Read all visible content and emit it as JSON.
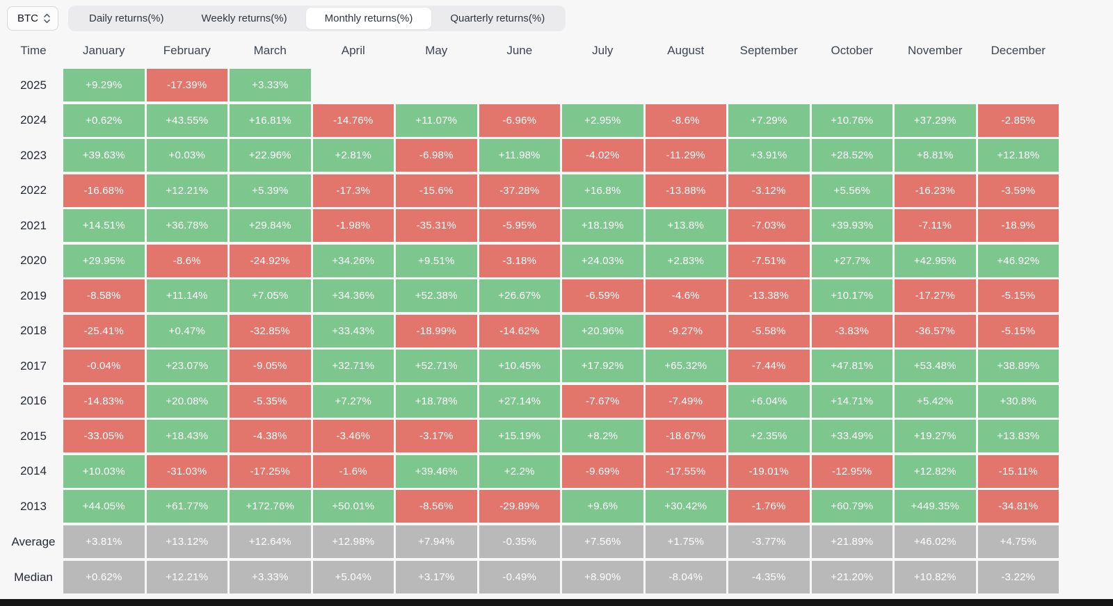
{
  "controls": {
    "symbol_select": {
      "value": "BTC"
    },
    "tabs": [
      {
        "label": "Daily returns(%)",
        "active": false
      },
      {
        "label": "Weekly returns(%)",
        "active": false
      },
      {
        "label": "Monthly returns(%)",
        "active": true
      },
      {
        "label": "Quarterly returns(%)",
        "active": false
      }
    ]
  },
  "table": {
    "time_header": "Time",
    "months": [
      "January",
      "February",
      "March",
      "April",
      "May",
      "June",
      "July",
      "August",
      "September",
      "October",
      "November",
      "December"
    ],
    "rows": [
      {
        "label": "2025",
        "type": "year",
        "cells": [
          "+9.29%",
          "-17.39%",
          "+3.33%",
          "",
          "",
          "",
          "",
          "",
          "",
          "",
          "",
          ""
        ]
      },
      {
        "label": "2024",
        "type": "year",
        "cells": [
          "+0.62%",
          "+43.55%",
          "+16.81%",
          "-14.76%",
          "+11.07%",
          "-6.96%",
          "+2.95%",
          "-8.6%",
          "+7.29%",
          "+10.76%",
          "+37.29%",
          "-2.85%"
        ]
      },
      {
        "label": "2023",
        "type": "year",
        "cells": [
          "+39.63%",
          "+0.03%",
          "+22.96%",
          "+2.81%",
          "-6.98%",
          "+11.98%",
          "-4.02%",
          "-11.29%",
          "+3.91%",
          "+28.52%",
          "+8.81%",
          "+12.18%"
        ]
      },
      {
        "label": "2022",
        "type": "year",
        "cells": [
          "-16.68%",
          "+12.21%",
          "+5.39%",
          "-17.3%",
          "-15.6%",
          "-37.28%",
          "+16.8%",
          "-13.88%",
          "-3.12%",
          "+5.56%",
          "-16.23%",
          "-3.59%"
        ]
      },
      {
        "label": "2021",
        "type": "year",
        "cells": [
          "+14.51%",
          "+36.78%",
          "+29.84%",
          "-1.98%",
          "-35.31%",
          "-5.95%",
          "+18.19%",
          "+13.8%",
          "-7.03%",
          "+39.93%",
          "-7.11%",
          "-18.9%"
        ]
      },
      {
        "label": "2020",
        "type": "year",
        "cells": [
          "+29.95%",
          "-8.6%",
          "-24.92%",
          "+34.26%",
          "+9.51%",
          "-3.18%",
          "+24.03%",
          "+2.83%",
          "-7.51%",
          "+27.7%",
          "+42.95%",
          "+46.92%"
        ]
      },
      {
        "label": "2019",
        "type": "year",
        "cells": [
          "-8.58%",
          "+11.14%",
          "+7.05%",
          "+34.36%",
          "+52.38%",
          "+26.67%",
          "-6.59%",
          "-4.6%",
          "-13.38%",
          "+10.17%",
          "-17.27%",
          "-5.15%"
        ]
      },
      {
        "label": "2018",
        "type": "year",
        "cells": [
          "-25.41%",
          "+0.47%",
          "-32.85%",
          "+33.43%",
          "-18.99%",
          "-14.62%",
          "+20.96%",
          "-9.27%",
          "-5.58%",
          "-3.83%",
          "-36.57%",
          "-5.15%"
        ]
      },
      {
        "label": "2017",
        "type": "year",
        "cells": [
          "-0.04%",
          "+23.07%",
          "-9.05%",
          "+32.71%",
          "+52.71%",
          "+10.45%",
          "+17.92%",
          "+65.32%",
          "-7.44%",
          "+47.81%",
          "+53.48%",
          "+38.89%"
        ]
      },
      {
        "label": "2016",
        "type": "year",
        "cells": [
          "-14.83%",
          "+20.08%",
          "-5.35%",
          "+7.27%",
          "+18.78%",
          "+27.14%",
          "-7.67%",
          "-7.49%",
          "+6.04%",
          "+14.71%",
          "+5.42%",
          "+30.8%"
        ]
      },
      {
        "label": "2015",
        "type": "year",
        "cells": [
          "-33.05%",
          "+18.43%",
          "-4.38%",
          "-3.46%",
          "-3.17%",
          "+15.19%",
          "+8.2%",
          "-18.67%",
          "+2.35%",
          "+33.49%",
          "+19.27%",
          "+13.83%"
        ]
      },
      {
        "label": "2014",
        "type": "year",
        "cells": [
          "+10.03%",
          "-31.03%",
          "-17.25%",
          "-1.6%",
          "+39.46%",
          "+2.2%",
          "-9.69%",
          "-17.55%",
          "-19.01%",
          "-12.95%",
          "+12.82%",
          "-15.11%"
        ]
      },
      {
        "label": "2013",
        "type": "year",
        "cells": [
          "+44.05%",
          "+61.77%",
          "+172.76%",
          "+50.01%",
          "-8.56%",
          "-29.89%",
          "+9.6%",
          "+30.42%",
          "-1.76%",
          "+60.79%",
          "+449.35%",
          "-34.81%"
        ]
      },
      {
        "label": "Average",
        "type": "summary",
        "cells": [
          "+3.81%",
          "+13.12%",
          "+12.64%",
          "+12.98%",
          "+7.94%",
          "-0.35%",
          "+7.56%",
          "+1.75%",
          "-3.77%",
          "+21.89%",
          "+46.02%",
          "+4.75%"
        ]
      },
      {
        "label": "Median",
        "type": "summary",
        "cells": [
          "+0.62%",
          "+12.21%",
          "+3.33%",
          "+5.04%",
          "+3.17%",
          "-0.49%",
          "+8.90%",
          "-8.04%",
          "-4.35%",
          "+21.20%",
          "+10.82%",
          "-3.22%"
        ]
      }
    ]
  },
  "colors": {
    "positive": "#7dc68e",
    "negative": "#e2756c",
    "summary": "#b9b9b9",
    "background": "#f7f7f8"
  }
}
